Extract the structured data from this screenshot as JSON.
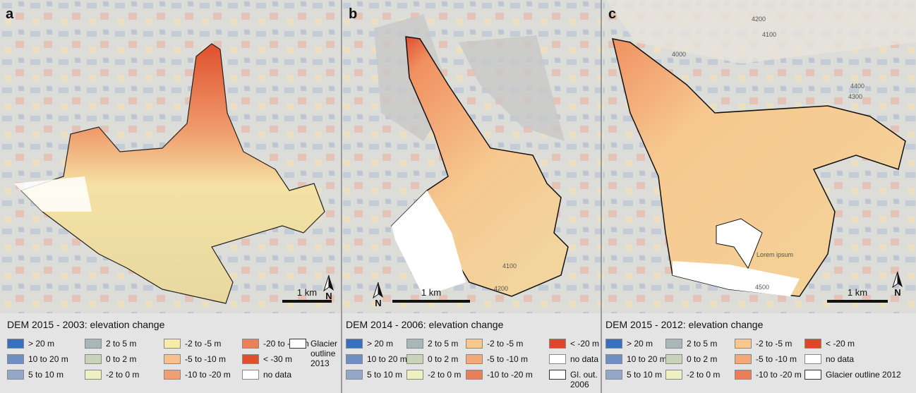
{
  "panels": [
    {
      "letter": "a",
      "legend_title": "DEM 2015 - 2003: elevation change",
      "scale_label": "1 km",
      "north_label": "N",
      "map_labels": [],
      "legend": [
        {
          "label": "> 20 m",
          "color": "#3a6fc0"
        },
        {
          "label": "10 to 20 m",
          "color": "#6f8fc2"
        },
        {
          "label": "5 to 10 m",
          "color": "#93a8c8"
        },
        {
          "label": "2 to 5 m",
          "color": "#a8b8b8"
        },
        {
          "label": "0 to 2 m",
          "color": "#c7d4b8"
        },
        {
          "label": "-2 to 0 m",
          "color": "#eef0c0"
        },
        {
          "label": "-2 to -5 m",
          "color": "#f8eaa8"
        },
        {
          "label": "-5 to -10 m",
          "color": "#f8c08a"
        },
        {
          "label": "-10 to -20 m",
          "color": "#f0a070"
        },
        {
          "label": "-20 to -30 m",
          "color": "#e8805a"
        },
        {
          "label": "< -30 m",
          "color": "#e0502c"
        },
        {
          "label": "no data",
          "color": "#ffffff"
        },
        {
          "label": "Glacier outline 2013",
          "color": "#ffffff"
        }
      ]
    },
    {
      "letter": "b",
      "legend_title": "DEM 2014 - 2006: elevation change",
      "scale_label": "1 km",
      "north_label": "N",
      "map_labels": [
        "4200",
        "4100"
      ],
      "legend": [
        {
          "label": "> 20 m",
          "color": "#3a6fc0"
        },
        {
          "label": "10 to 20 m",
          "color": "#6f8fc2"
        },
        {
          "label": "5 to 10 m",
          "color": "#93a8c8"
        },
        {
          "label": "2 to 5 m",
          "color": "#a8b8b8"
        },
        {
          "label": "0 to 2 m",
          "color": "#c7d4b8"
        },
        {
          "label": "-2 to 0 m",
          "color": "#eef0c0"
        },
        {
          "label": "-2 to -5 m",
          "color": "#f6c890"
        },
        {
          "label": "-5 to -10 m",
          "color": "#f2a878"
        },
        {
          "label": "-10 to -20 m",
          "color": "#ea7e58"
        },
        {
          "label": "< -20 m",
          "color": "#e0442a"
        },
        {
          "label": "no data",
          "color": "#ffffff"
        },
        {
          "label": "Gl. out. 2006",
          "color": "#ffffff"
        }
      ]
    },
    {
      "letter": "c",
      "legend_title": "DEM 2015 - 2012: elevation change",
      "scale_label": "1 km",
      "north_label": "N",
      "map_labels": [
        "4200",
        "4100",
        "4000",
        "4400",
        "4300",
        "4500",
        "Lorem ipsum"
      ],
      "legend": [
        {
          "label": "> 20 m",
          "color": "#3a6fc0"
        },
        {
          "label": "10 to 20 m",
          "color": "#6f8fc2"
        },
        {
          "label": "5 to 10 m",
          "color": "#93a8c8"
        },
        {
          "label": "2 to 5 m",
          "color": "#a8b8b8"
        },
        {
          "label": "0 to 2 m",
          "color": "#c7d4b8"
        },
        {
          "label": "-2 to 0 m",
          "color": "#eef0c0"
        },
        {
          "label": "-2 to -5 m",
          "color": "#f6c890"
        },
        {
          "label": "-5 to -10 m",
          "color": "#f2a878"
        },
        {
          "label": "-10 to -20 m",
          "color": "#ea7e58"
        },
        {
          "label": "< -20 m",
          "color": "#e0442a"
        },
        {
          "label": "no data",
          "color": "#ffffff"
        },
        {
          "label": "Glacier outline 2012",
          "color": "#ffffff"
        }
      ]
    }
  ]
}
